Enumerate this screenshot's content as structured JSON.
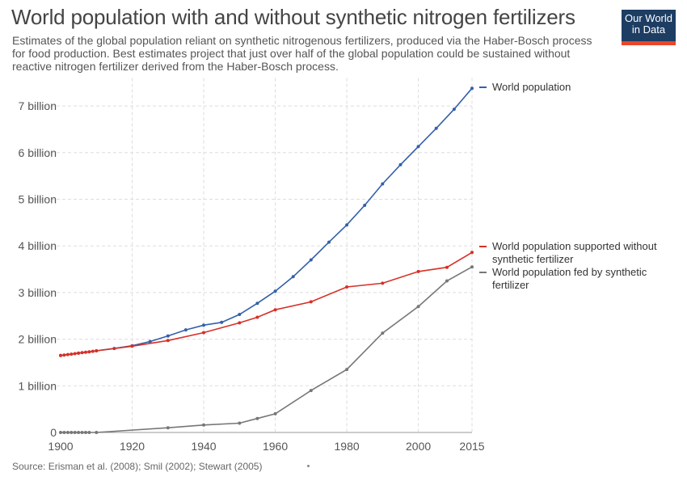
{
  "header": {
    "title": "World population with and without synthetic nitrogen fertilizers",
    "subtitle": "Estimates of the global population reliant on synthetic nitrogenous fertilizers, produced via the Haber-Bosch process for food production. Best estimates project that just over half of the global population could be sustained without reactive nitrogen fertilizer derived from the Haber-Bosch process."
  },
  "logo": {
    "line1": "Our World",
    "line2": "in Data"
  },
  "source": "Source: Erisman et al. (2008); Smil (2002); Stewart (2005)",
  "chart_data": {
    "type": "line",
    "title": "World population with and without synthetic nitrogen fertilizers",
    "xlabel": "",
    "ylabel": "",
    "xlim": [
      1900,
      2015
    ],
    "ylim": [
      0,
      7.6
    ],
    "x_ticks": [
      1900,
      1920,
      1940,
      1960,
      1980,
      2000,
      2015
    ],
    "y_ticks": [
      {
        "value": 0,
        "label": "0"
      },
      {
        "value": 1,
        "label": "1 billion"
      },
      {
        "value": 2,
        "label": "2 billion"
      },
      {
        "value": 3,
        "label": "3 billion"
      },
      {
        "value": 4,
        "label": "4 billion"
      },
      {
        "value": 5,
        "label": "5 billion"
      },
      {
        "value": 6,
        "label": "6 billion"
      },
      {
        "value": 7,
        "label": "7 billion"
      }
    ],
    "grid": true,
    "legend_position": "right",
    "series": [
      {
        "name": "World population",
        "color": "#3360a9",
        "points": [
          [
            1900,
            1.65
          ],
          [
            1905,
            1.7
          ],
          [
            1910,
            1.75
          ],
          [
            1915,
            1.8
          ],
          [
            1920,
            1.86
          ],
          [
            1925,
            1.95
          ],
          [
            1930,
            2.07
          ],
          [
            1935,
            2.2
          ],
          [
            1940,
            2.3
          ],
          [
            1945,
            2.36
          ],
          [
            1950,
            2.53
          ],
          [
            1955,
            2.77
          ],
          [
            1960,
            3.03
          ],
          [
            1965,
            3.34
          ],
          [
            1970,
            3.7
          ],
          [
            1975,
            4.08
          ],
          [
            1980,
            4.45
          ],
          [
            1985,
            4.87
          ],
          [
            1990,
            5.33
          ],
          [
            1995,
            5.74
          ],
          [
            2000,
            6.13
          ],
          [
            2005,
            6.52
          ],
          [
            2010,
            6.93
          ],
          [
            2015,
            7.38
          ]
        ]
      },
      {
        "name": "World population supported without synthetic fertilizer",
        "color": "#d73027",
        "points": [
          [
            1900,
            1.65
          ],
          [
            1901,
            1.66
          ],
          [
            1902,
            1.67
          ],
          [
            1903,
            1.68
          ],
          [
            1904,
            1.69
          ],
          [
            1905,
            1.7
          ],
          [
            1906,
            1.71
          ],
          [
            1907,
            1.72
          ],
          [
            1908,
            1.73
          ],
          [
            1909,
            1.74
          ],
          [
            1910,
            1.75
          ],
          [
            1920,
            1.85
          ],
          [
            1930,
            1.97
          ],
          [
            1940,
            2.14
          ],
          [
            1950,
            2.35
          ],
          [
            1955,
            2.47
          ],
          [
            1960,
            2.63
          ],
          [
            1970,
            2.8
          ],
          [
            1980,
            3.12
          ],
          [
            1990,
            3.2
          ],
          [
            2000,
            3.45
          ],
          [
            2008,
            3.54
          ],
          [
            2015,
            3.86
          ]
        ]
      },
      {
        "name": "World population fed by synthetic fertilizer",
        "color": "#777777",
        "points": [
          [
            1900,
            0
          ],
          [
            1901,
            0
          ],
          [
            1902,
            0
          ],
          [
            1903,
            0
          ],
          [
            1904,
            0
          ],
          [
            1905,
            0
          ],
          [
            1906,
            0
          ],
          [
            1907,
            0
          ],
          [
            1908,
            0
          ],
          [
            1910,
            0
          ],
          [
            1930,
            0.1
          ],
          [
            1940,
            0.16
          ],
          [
            1950,
            0.2
          ],
          [
            1955,
            0.3
          ],
          [
            1960,
            0.4
          ],
          [
            1970,
            0.9
          ],
          [
            1980,
            1.35
          ],
          [
            1990,
            2.13
          ],
          [
            2000,
            2.7
          ],
          [
            2008,
            3.25
          ],
          [
            2015,
            3.55
          ]
        ]
      }
    ],
    "legend": [
      {
        "lines": [
          "World population"
        ],
        "color": "#3360a9"
      },
      {
        "lines": [
          "World population supported without",
          "synthetic fertilizer"
        ],
        "color": "#d73027"
      },
      {
        "lines": [
          "World population fed by synthetic",
          "fertilizer"
        ],
        "color": "#777777"
      }
    ]
  }
}
